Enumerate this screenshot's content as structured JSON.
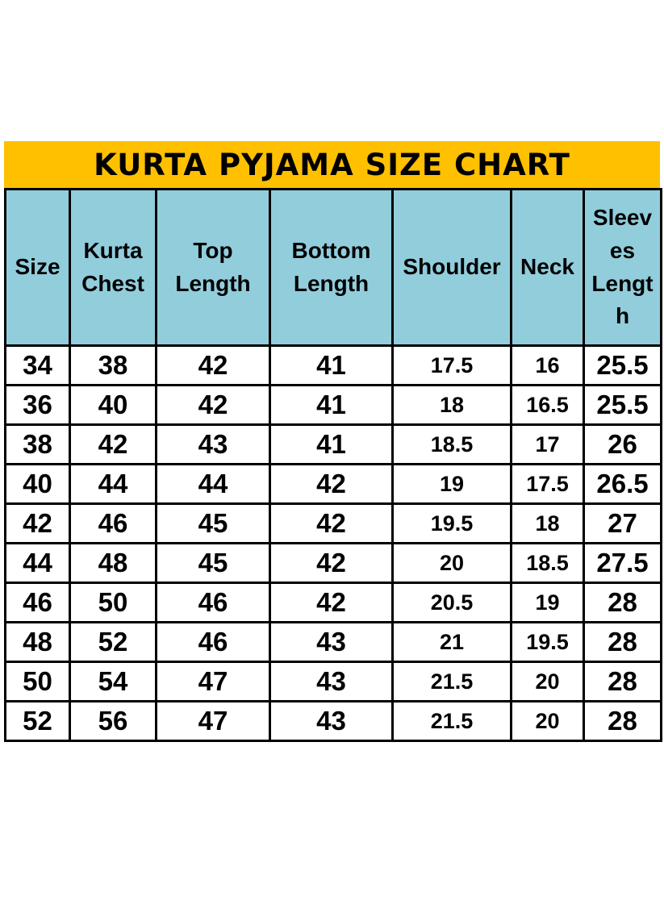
{
  "title": "KURTA PYJAMA SIZE CHART",
  "colors": {
    "title_bg": "#FFC000",
    "header_bg": "#92CDDC",
    "grid_border": "#000000",
    "page_bg": "#FFFFFF",
    "text": "#000000"
  },
  "chart_data": {
    "type": "table",
    "title": "KURTA PYJAMA SIZE CHART",
    "columns": [
      "Size",
      "Kurta Chest",
      "Top Length",
      "Bottom Length",
      "Shoulder",
      "Neck",
      "Sleeves Length"
    ],
    "rows": [
      [
        "34",
        "38",
        "42",
        "41",
        "17.5",
        "16",
        "25.5"
      ],
      [
        "36",
        "40",
        "42",
        "41",
        "18",
        "16.5",
        "25.5"
      ],
      [
        "38",
        "42",
        "43",
        "41",
        "18.5",
        "17",
        "26"
      ],
      [
        "40",
        "44",
        "44",
        "42",
        "19",
        "17.5",
        "26.5"
      ],
      [
        "42",
        "46",
        "45",
        "42",
        "19.5",
        "18",
        "27"
      ],
      [
        "44",
        "48",
        "45",
        "42",
        "20",
        "18.5",
        "27.5"
      ],
      [
        "46",
        "50",
        "46",
        "42",
        "20.5",
        "19",
        "28"
      ],
      [
        "48",
        "52",
        "46",
        "43",
        "21",
        "19.5",
        "28"
      ],
      [
        "50",
        "54",
        "47",
        "43",
        "21.5",
        "20",
        "28"
      ],
      [
        "52",
        "56",
        "47",
        "43",
        "21.5",
        "20",
        "28"
      ]
    ],
    "layout": {
      "grid": "on",
      "header_position": "top",
      "title_position": "top-banner"
    }
  }
}
